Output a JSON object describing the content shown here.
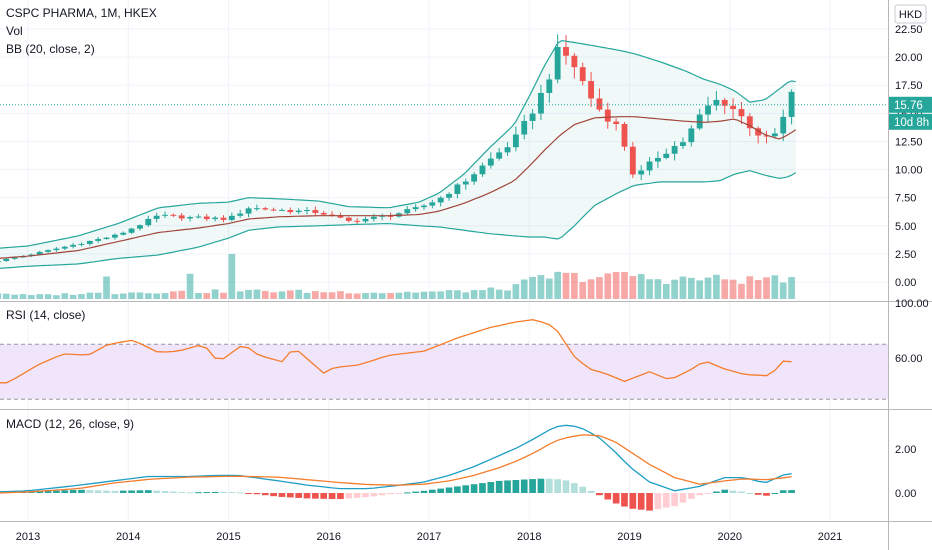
{
  "header": {
    "symbol_line": "CSPC PHARMA, 1M, HKEX",
    "vol_label": "Vol",
    "bb_label": "BB (20, close, 2)",
    "currency": "HKD"
  },
  "price_badge": {
    "value": "15.76",
    "countdown": "10d 8h"
  },
  "rsi_panel": {
    "label": "RSI (14, close)"
  },
  "macd_panel": {
    "label": "MACD (12, 26, close, 9)"
  },
  "colors": {
    "up": "#26a69a",
    "down": "#ef5350",
    "bb_band": "#26a69a",
    "bb_basis": "#a1453b",
    "rsi_line": "#f57c2c",
    "rsi_band_fill": "#f1e5fb",
    "macd_line": "#1e9ec4",
    "signal_line": "#f57c2c"
  },
  "chart_data": [
    {
      "type": "candlestick",
      "title": "CSPC PHARMA, 1M, HKEX",
      "x_tick_labels": [
        "2013",
        "2014",
        "2015",
        "2016",
        "2017",
        "2018",
        "2019",
        "2020",
        "2021"
      ],
      "y_tick_labels": [
        "22.50",
        "20.00",
        "17.50",
        "15.00",
        "12.50",
        "10.00",
        "7.50",
        "5.00",
        "2.50",
        "0.00"
      ],
      "ylim": [
        0,
        22.5
      ],
      "last_price": 15.76,
      "series": [
        {
          "name": "Vol"
        },
        {
          "name": "BB (20, close, 2)"
        }
      ],
      "keyframes": {
        "time": [
          2012.7,
          2013.0,
          2013.5,
          2013.9,
          2014.3,
          2014.7,
          2015.0,
          2015.2,
          2015.5,
          2015.9,
          2016.2,
          2016.6,
          2016.9,
          2017.1,
          2017.35,
          2017.6,
          2017.85,
          2018.0,
          2018.15,
          2018.3,
          2018.45,
          2018.65,
          2018.9,
          2019.05,
          2019.3,
          2019.55,
          2019.75,
          2019.9,
          2020.05,
          2020.2,
          2020.35,
          2020.5,
          2020.6,
          2020.67
        ],
        "close": [
          1.9,
          2.4,
          3.4,
          4.2,
          5.9,
          5.7,
          5.6,
          6.6,
          6.4,
          6.2,
          5.4,
          5.9,
          6.6,
          7.4,
          8.9,
          10.8,
          12.6,
          14.7,
          17.2,
          20.8,
          19.2,
          15.8,
          13.6,
          9.2,
          11.3,
          12.6,
          15.4,
          16.3,
          15.3,
          13.9,
          12.6,
          13.4,
          16.9,
          15.76
        ],
        "bb_upper": [
          3.0,
          3.2,
          4.1,
          5.2,
          6.6,
          7.0,
          7.1,
          7.5,
          7.4,
          7.2,
          6.7,
          6.6,
          7.1,
          7.9,
          9.6,
          11.9,
          14.0,
          16.5,
          19.2,
          21.5,
          21.3,
          21.0,
          20.6,
          20.3,
          19.6,
          18.8,
          18.0,
          17.6,
          17.0,
          16.0,
          16.2,
          17.2,
          17.9,
          17.8
        ],
        "bb_basis": [
          2.1,
          2.3,
          2.8,
          3.6,
          4.4,
          4.8,
          5.2,
          5.6,
          5.8,
          5.9,
          5.9,
          5.9,
          6.0,
          6.3,
          7.0,
          7.9,
          9.0,
          10.3,
          11.7,
          13.0,
          14.0,
          14.6,
          14.7,
          14.7,
          14.5,
          14.3,
          14.2,
          14.3,
          14.5,
          13.9,
          13.1,
          12.7,
          13.2,
          13.6
        ],
        "bb_lower": [
          1.2,
          1.4,
          1.6,
          2.1,
          2.4,
          3.1,
          3.9,
          4.6,
          4.9,
          5.0,
          5.1,
          5.2,
          5.0,
          4.9,
          4.6,
          4.3,
          4.1,
          4.0,
          4.0,
          3.8,
          5.0,
          6.8,
          8.0,
          8.6,
          8.9,
          8.9,
          8.9,
          9.0,
          9.6,
          9.9,
          9.5,
          9.2,
          9.4,
          9.8
        ],
        "volume": [
          0.7,
          0.4,
          0.6,
          0.7,
          0.8,
          0.8,
          0.9,
          0.9,
          0.9,
          0.8,
          0.8,
          0.7,
          0.8,
          0.8,
          0.9,
          1.0,
          1.3,
          2.0,
          2.4,
          2.6,
          2.5,
          2.4,
          2.5,
          2.5,
          2.2,
          2.2,
          2.3,
          2.2,
          2.2,
          2.1,
          2.3,
          2.4,
          2.3,
          1.1
        ]
      },
      "volume_spikes": [
        {
          "time": 2013.75,
          "volume": 2.5
        },
        {
          "time": 2014.6,
          "volume": 2.8
        },
        {
          "time": 2015.0,
          "volume": 5.0
        },
        {
          "time": 2018.95,
          "volume": 3.0
        }
      ]
    },
    {
      "type": "line",
      "title": "RSI (14, close)",
      "y_tick_labels": [
        "100.00",
        "60.00"
      ],
      "ylim": [
        0,
        100
      ],
      "band": [
        30,
        70
      ],
      "keyframes": {
        "time": [
          2012.7,
          2012.8,
          2013.1,
          2013.35,
          2013.6,
          2013.8,
          2014.05,
          2014.3,
          2014.5,
          2014.75,
          2014.9,
          2015.15,
          2015.3,
          2015.55,
          2015.65,
          2015.95,
          2016.05,
          2016.3,
          2016.6,
          2016.95,
          2017.3,
          2017.6,
          2017.85,
          2018.05,
          2018.25,
          2018.45,
          2018.6,
          2018.75,
          2018.95,
          2019.2,
          2019.4,
          2019.6,
          2019.75,
          2019.95,
          2020.15,
          2020.4,
          2020.55,
          2020.67
        ],
        "rsi": [
          42,
          42,
          55,
          63,
          62,
          70,
          73,
          64,
          65,
          70,
          57,
          70,
          62,
          57,
          68,
          49,
          53,
          55,
          62,
          65,
          75,
          82,
          86,
          88,
          83,
          61,
          52,
          49,
          43,
          50,
          44,
          51,
          58,
          52,
          48,
          47,
          59,
          56
        ]
      }
    },
    {
      "type": "line",
      "title": "MACD (12, 26, close, 9)",
      "y_tick_labels": [
        "2.00",
        "0.00"
      ],
      "ylim": [
        -1.2,
        3.4
      ],
      "series": [
        {
          "name": "MACD (12, 26, close, 9)"
        }
      ],
      "keyframes": {
        "time": [
          2012.7,
          2013.0,
          2013.5,
          2013.85,
          2014.2,
          2014.6,
          2014.9,
          2015.1,
          2015.5,
          2015.8,
          2016.1,
          2016.4,
          2016.7,
          2016.95,
          2017.2,
          2017.45,
          2017.7,
          2017.9,
          2018.1,
          2018.25,
          2018.4,
          2018.55,
          2018.7,
          2018.85,
          2019.0,
          2019.2,
          2019.45,
          2019.7,
          2019.95,
          2020.15,
          2020.35,
          2020.55,
          2020.67
        ],
        "macd": [
          0.05,
          0.1,
          0.35,
          0.55,
          0.75,
          0.75,
          0.8,
          0.8,
          0.55,
          0.35,
          0.2,
          0.2,
          0.35,
          0.5,
          0.8,
          1.2,
          1.7,
          2.1,
          2.6,
          3.0,
          3.1,
          2.9,
          2.5,
          1.9,
          1.2,
          0.5,
          0.1,
          0.3,
          0.7,
          0.7,
          0.45,
          0.85,
          0.9
        ],
        "signal": [
          0.0,
          0.05,
          0.2,
          0.45,
          0.62,
          0.72,
          0.75,
          0.76,
          0.72,
          0.6,
          0.48,
          0.38,
          0.36,
          0.4,
          0.55,
          0.8,
          1.15,
          1.5,
          1.95,
          2.35,
          2.55,
          2.65,
          2.6,
          2.35,
          1.9,
          1.3,
          0.7,
          0.4,
          0.55,
          0.65,
          0.6,
          0.7,
          0.78
        ]
      }
    }
  ]
}
